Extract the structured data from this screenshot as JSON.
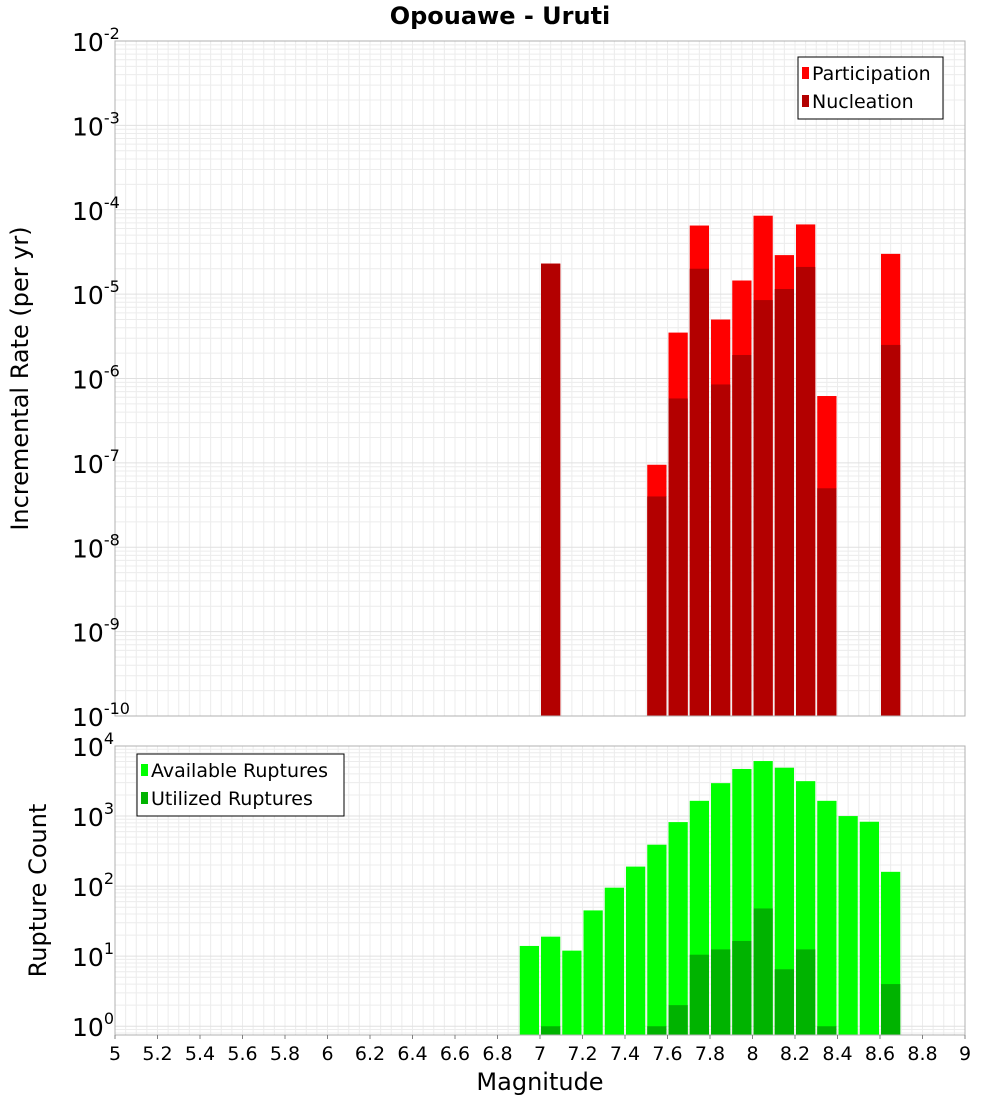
{
  "chart_data": [
    {
      "type": "bar",
      "title": "Opouawe - Uruti",
      "ylabel": "Incremental Rate (per yr)",
      "yscale": "log",
      "ylim": [
        1e-10,
        0.01
      ],
      "xlim": [
        5,
        9
      ],
      "ytick_base": "10",
      "ytick_exponents": [
        "-10",
        "-9",
        "-8",
        "-7",
        "-6",
        "-5",
        "-4",
        "-3",
        "-2"
      ],
      "legend": {
        "position": "top-right",
        "entries": [
          "Participation",
          "Nucleation"
        ]
      },
      "series": [
        {
          "name": "Participation",
          "color": "#ff0000",
          "points": [
            [
              7.05,
              2.3e-05
            ],
            [
              7.55,
              9.5e-08
            ],
            [
              7.65,
              3.5e-06
            ],
            [
              7.75,
              6.5e-05
            ],
            [
              7.85,
              5e-06
            ],
            [
              7.95,
              1.45e-05
            ],
            [
              8.05,
              8.5e-05
            ],
            [
              8.15,
              2.9e-05
            ],
            [
              8.25,
              6.7e-05
            ],
            [
              8.35,
              6.2e-07
            ],
            [
              8.65,
              3e-05
            ]
          ]
        },
        {
          "name": "Nucleation",
          "color": "#b30000",
          "points": [
            [
              7.05,
              2.3e-05
            ],
            [
              7.55,
              4e-08
            ],
            [
              7.65,
              5.8e-07
            ],
            [
              7.75,
              2e-05
            ],
            [
              7.85,
              8.5e-07
            ],
            [
              7.95,
              1.9e-06
            ],
            [
              8.05,
              8.5e-06
            ],
            [
              8.15,
              1.15e-05
            ],
            [
              8.25,
              2.1e-05
            ],
            [
              8.35,
              5e-08
            ],
            [
              8.65,
              2.5e-06
            ]
          ]
        }
      ]
    },
    {
      "type": "bar",
      "xlabel": "Magnitude",
      "ylabel": "Rupture Count",
      "yscale": "log",
      "ylim": [
        0.75,
        10000
      ],
      "xlim": [
        5,
        9
      ],
      "xticks": [
        "5",
        "5.2",
        "5.4",
        "5.6",
        "5.8",
        "6",
        "6.2",
        "6.4",
        "6.6",
        "6.8",
        "7",
        "7.2",
        "7.4",
        "7.6",
        "7.8",
        "8",
        "8.2",
        "8.4",
        "8.6",
        "8.8",
        "9"
      ],
      "ytick_base": "10",
      "ytick_exponents": [
        "0",
        "1",
        "2",
        "3",
        "4"
      ],
      "legend": {
        "position": "top-left",
        "entries": [
          "Available Ruptures",
          "Utilized Ruptures"
        ]
      },
      "series": [
        {
          "name": "Available Ruptures",
          "color": "#00ff00",
          "points": [
            [
              6.95,
              14
            ],
            [
              7.05,
              19
            ],
            [
              7.15,
              12
            ],
            [
              7.25,
              45
            ],
            [
              7.35,
              95
            ],
            [
              7.45,
              190
            ],
            [
              7.55,
              390
            ],
            [
              7.65,
              820
            ],
            [
              7.75,
              1650
            ],
            [
              7.85,
              2950
            ],
            [
              7.95,
              4700
            ],
            [
              8.05,
              6100
            ],
            [
              8.15,
              4900
            ],
            [
              8.25,
              3150
            ],
            [
              8.35,
              1650
            ],
            [
              8.45,
              1000
            ],
            [
              8.55,
              830
            ],
            [
              8.65,
              160
            ]
          ]
        },
        {
          "name": "Utilized Ruptures",
          "color": "#00b300",
          "points": [
            [
              7.05,
              1
            ],
            [
              7.55,
              1
            ],
            [
              7.65,
              2
            ],
            [
              7.75,
              10.5
            ],
            [
              7.85,
              12.5
            ],
            [
              7.95,
              16.5
            ],
            [
              8.05,
              48
            ],
            [
              8.15,
              6.5
            ],
            [
              8.25,
              12.5
            ],
            [
              8.35,
              1
            ],
            [
              8.65,
              4
            ]
          ]
        }
      ]
    }
  ]
}
